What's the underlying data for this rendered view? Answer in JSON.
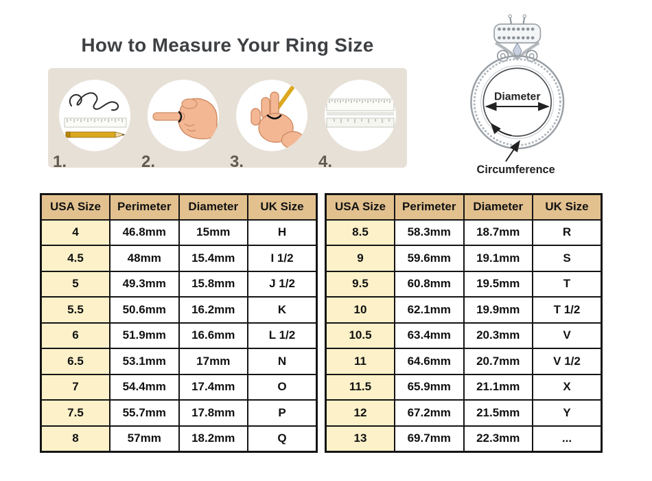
{
  "title": "How to Measure Your Ring Size",
  "steps": [
    {
      "number": "1.",
      "icon": "string-ruler-pencil-icon"
    },
    {
      "number": "2.",
      "icon": "pointing-hand-icon"
    },
    {
      "number": "3.",
      "icon": "hand-pen-marking-icon"
    },
    {
      "number": "4.",
      "icon": "ruler-icon"
    }
  ],
  "ring_diagram": {
    "diameter_label": "Diameter",
    "circumference_label": "Circumference"
  },
  "tables": {
    "headers": [
      "USA Size",
      "Perimeter",
      "Diameter",
      "UK Size"
    ],
    "left_rows": [
      [
        "4",
        "46.8mm",
        "15mm",
        "H"
      ],
      [
        "4.5",
        "48mm",
        "15.4mm",
        "I 1/2"
      ],
      [
        "5",
        "49.3mm",
        "15.8mm",
        "J 1/2"
      ],
      [
        "5.5",
        "50.6mm",
        "16.2mm",
        "K"
      ],
      [
        "6",
        "51.9mm",
        "16.6mm",
        "L 1/2"
      ],
      [
        "6.5",
        "53.1mm",
        "17mm",
        "N"
      ],
      [
        "7",
        "54.4mm",
        "17.4mm",
        "O"
      ],
      [
        "7.5",
        "55.7mm",
        "17.8mm",
        "P"
      ],
      [
        "8",
        "57mm",
        "18.2mm",
        "Q"
      ]
    ],
    "right_rows": [
      [
        "8.5",
        "58.3mm",
        "18.7mm",
        "R"
      ],
      [
        "9",
        "59.6mm",
        "19.1mm",
        "S"
      ],
      [
        "9.5",
        "60.8mm",
        "19.5mm",
        "T"
      ],
      [
        "10",
        "62.1mm",
        "19.9mm",
        "T 1/2"
      ],
      [
        "10.5",
        "63.4mm",
        "20.3mm",
        "V"
      ],
      [
        "11",
        "64.6mm",
        "20.7mm",
        "V 1/2"
      ],
      [
        "11.5",
        "65.9mm",
        "21.1mm",
        "X"
      ],
      [
        "12",
        "67.2mm",
        "21.5mm",
        "Y"
      ],
      [
        "13",
        "69.7mm",
        "22.3mm",
        "..."
      ]
    ]
  },
  "colors": {
    "banner_bg": "#e7e0d7",
    "table_header_bg": "#e2c18f",
    "usa_col_bg": "#fcf1c9",
    "border": "#141414",
    "title_text": "#3e4144",
    "step_number": "#605b4f",
    "pencil_yellow": "#dba81f",
    "hand_skin": "#f3b794"
  }
}
